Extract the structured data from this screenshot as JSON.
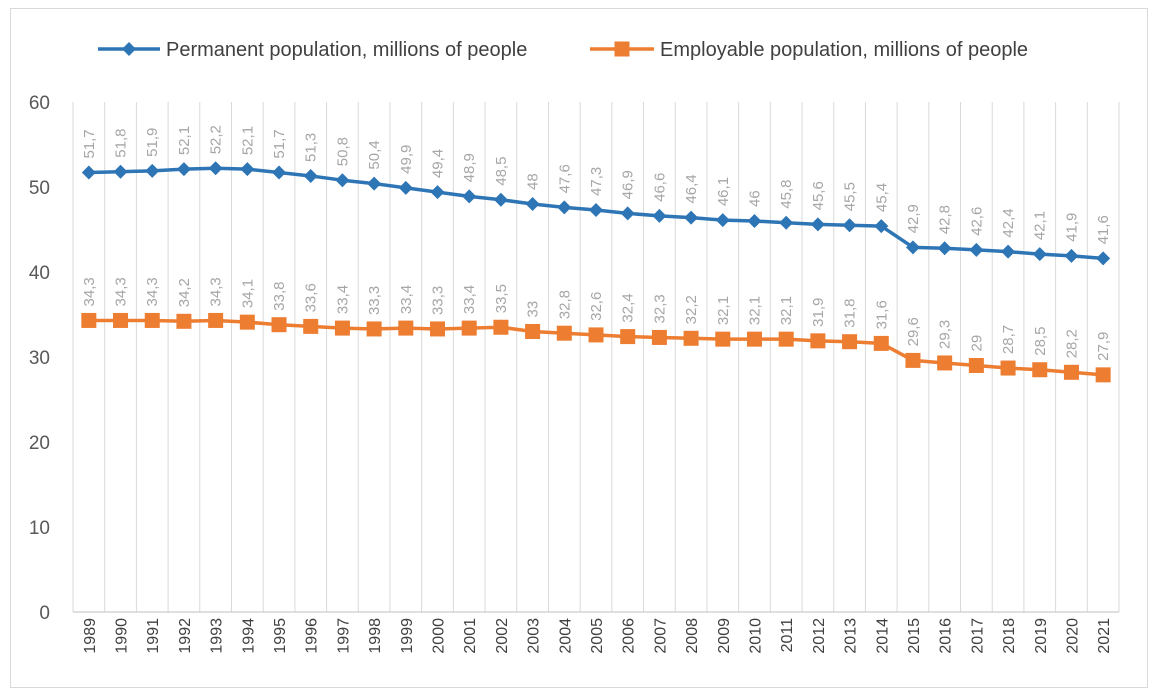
{
  "chart_data": {
    "type": "line",
    "title": "",
    "xlabel": "",
    "ylabel": "",
    "ylim": [
      0,
      60
    ],
    "yticks": [
      0,
      10,
      20,
      30,
      40,
      50,
      60
    ],
    "grid": "vertical gridlines on",
    "legend_position": "top",
    "x": [
      "1989",
      "1990",
      "1991",
      "1992",
      "1993",
      "1994",
      "1995",
      "1996",
      "1997",
      "1998",
      "1999",
      "2000",
      "2001",
      "2002",
      "2003",
      "2004",
      "2005",
      "2006",
      "2007",
      "2008",
      "2009",
      "2010",
      "2011",
      "2012",
      "2013",
      "2014",
      "2015",
      "2016",
      "2017",
      "2018",
      "2019",
      "2020",
      "2021"
    ],
    "series": [
      {
        "name": "Permanent population, millions of people",
        "color": "#2e75b6",
        "marker": "diamond",
        "values": [
          51.7,
          51.8,
          51.9,
          52.1,
          52.2,
          52.1,
          51.7,
          51.3,
          50.8,
          50.4,
          49.9,
          49.4,
          48.9,
          48.5,
          48,
          47.6,
          47.3,
          46.9,
          46.6,
          46.4,
          46.1,
          46,
          45.8,
          45.6,
          45.5,
          45.4,
          42.9,
          42.8,
          42.6,
          42.4,
          42.1,
          41.9,
          41.6
        ],
        "labels": [
          "51,7",
          "51,8",
          "51,9",
          "52,1",
          "52,2",
          "52,1",
          "51,7",
          "51,3",
          "50,8",
          "50,4",
          "49,9",
          "49,4",
          "48,9",
          "48,5",
          "48",
          "47,6",
          "47,3",
          "46,9",
          "46,6",
          "46,4",
          "46,1",
          "46",
          "45,8",
          "45,6",
          "45,5",
          "45,4",
          "42,9",
          "42,8",
          "42,6",
          "42,4",
          "42,1",
          "41,9",
          "41,6"
        ]
      },
      {
        "name": "Employable population, millions of people",
        "color": "#ed7d31",
        "marker": "square",
        "values": [
          34.3,
          34.3,
          34.3,
          34.2,
          34.3,
          34.1,
          33.8,
          33.6,
          33.4,
          33.3,
          33.4,
          33.3,
          33.4,
          33.5,
          33,
          32.8,
          32.6,
          32.4,
          32.3,
          32.2,
          32.1,
          32.1,
          32.1,
          31.9,
          31.8,
          31.6,
          29.6,
          29.3,
          29,
          28.7,
          28.5,
          28.2,
          27.9
        ],
        "labels": [
          "34,3",
          "34,3",
          "34,3",
          "34,2",
          "34,3",
          "34,1",
          "33,8",
          "33,6",
          "33,4",
          "33,3",
          "33,4",
          "33,3",
          "33,4",
          "33,5",
          "33",
          "32,8",
          "32,6",
          "32,4",
          "32,3",
          "32,2",
          "32,1",
          "32,1",
          "32,1",
          "31,9",
          "31,8",
          "31,6",
          "29,6",
          "29,3",
          "29",
          "28,7",
          "28,5",
          "28,2",
          "27,9"
        ]
      }
    ]
  }
}
